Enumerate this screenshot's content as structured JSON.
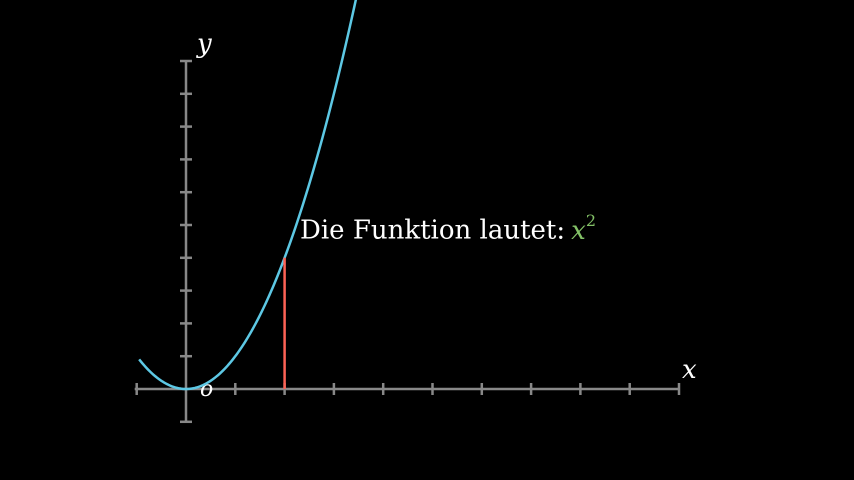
{
  "axes": {
    "x_label": "x",
    "y_label": "y",
    "origin_label": "o",
    "x_range": [
      -1,
      10
    ],
    "y_range": [
      -1,
      10
    ],
    "x_ticks": [
      -1,
      1,
      2,
      3,
      4,
      5,
      6,
      7,
      8,
      9,
      10
    ],
    "y_ticks": [
      -1,
      1,
      2,
      3,
      4,
      5,
      6,
      7,
      8,
      9,
      10
    ],
    "color": "#888888"
  },
  "curve": {
    "function": "x^2",
    "x_domain": [
      -0.95,
      3.45
    ],
    "color": "#5DC8E4"
  },
  "marker": {
    "x": 2,
    "y": 4,
    "color": "#FC6255"
  },
  "annotation": {
    "text": "Die Funktion lautet:",
    "formula_base": "x",
    "formula_exponent": "2",
    "text_color": "#FFFFFF",
    "formula_color": "#83C167"
  }
}
